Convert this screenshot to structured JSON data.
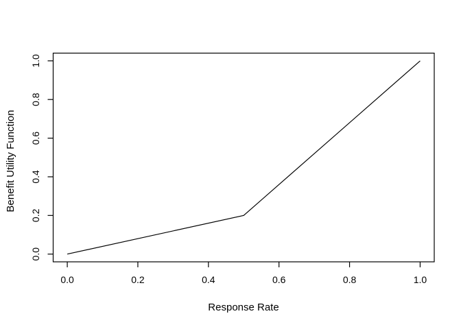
{
  "figure": {
    "background": "#ffffff"
  },
  "chart_data": {
    "type": "line",
    "title": "",
    "xlabel": "Response Rate",
    "ylabel": "Benefit Utility Function",
    "series": [
      {
        "name": "benefit-utility-curve",
        "x": [
          0.0,
          0.5,
          1.0
        ],
        "y": [
          0.0,
          0.2,
          1.0
        ],
        "color": "#000000"
      }
    ],
    "xlim": [
      0.0,
      1.0
    ],
    "ylim": [
      0.0,
      1.0
    ],
    "x_tick_values": [
      0.0,
      0.2,
      0.4,
      0.6,
      0.8,
      1.0
    ],
    "x_tick_labels": [
      "0.0",
      "0.2",
      "0.4",
      "0.6",
      "0.8",
      "1.0"
    ],
    "y_tick_values": [
      0.0,
      0.2,
      0.4,
      0.6,
      0.8,
      1.0
    ],
    "y_tick_labels": [
      "0.0",
      "0.2",
      "0.4",
      "0.6",
      "0.8",
      "1.0"
    ],
    "grid": false,
    "legend_position": "none",
    "axis_color": "#000000",
    "text_color": "#000000",
    "background": "#ffffff"
  }
}
